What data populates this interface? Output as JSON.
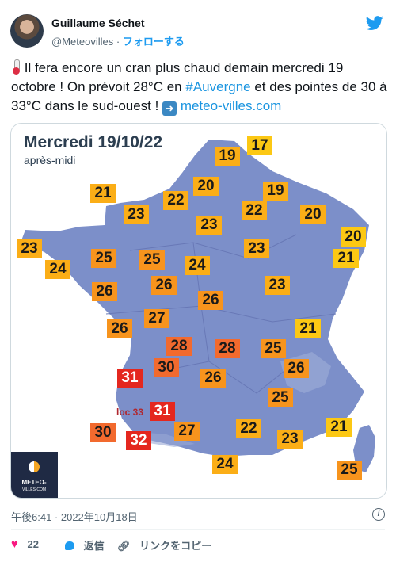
{
  "author": {
    "name": "Guillaume Séchet",
    "handle": "@Meteovilles",
    "separator": "·",
    "follow_label": "フォローする"
  },
  "tweet": {
    "text_part1": " Il fera encore un cran plus chaud demain mercredi 19 octobre ! On prévoit 28°C en ",
    "hashtag": "#Auvergne",
    "text_part2": " et des pointes de 30 à 33°C dans le sud-ouest ! ",
    "link": "meteo-villes.com"
  },
  "map": {
    "title": "Mercredi 19/10/22",
    "subtitle": "après-midi",
    "loc_label": "loc 33",
    "logo_word": "METEO-",
    "logo_domain": "VILLES.COM",
    "temps": [
      {
        "v": "17",
        "c": "yellow"
      },
      {
        "v": "19",
        "c": "orange"
      },
      {
        "v": "21",
        "c": "orange"
      },
      {
        "v": "20",
        "c": "orange"
      },
      {
        "v": "19",
        "c": "orange"
      },
      {
        "v": "22",
        "c": "orange"
      },
      {
        "v": "23",
        "c": "orange"
      },
      {
        "v": "22",
        "c": "orange"
      },
      {
        "v": "20",
        "c": "orange"
      },
      {
        "v": "23",
        "c": "orange"
      },
      {
        "v": "20",
        "c": "yellow"
      },
      {
        "v": "23",
        "c": "orange"
      },
      {
        "v": "21",
        "c": "yellow"
      },
      {
        "v": "24",
        "c": "orange"
      },
      {
        "v": "25",
        "c": "darkorange"
      },
      {
        "v": "25",
        "c": "darkorange"
      },
      {
        "v": "24",
        "c": "orange"
      },
      {
        "v": "23",
        "c": "orange"
      },
      {
        "v": "26",
        "c": "darkorange"
      },
      {
        "v": "26",
        "c": "darkorange"
      },
      {
        "v": "23",
        "c": "orange"
      },
      {
        "v": "26",
        "c": "darkorange"
      },
      {
        "v": "27",
        "c": "darkorange"
      },
      {
        "v": "26",
        "c": "darkorange"
      },
      {
        "v": "21",
        "c": "yellow"
      },
      {
        "v": "28",
        "c": "red"
      },
      {
        "v": "28",
        "c": "red"
      },
      {
        "v": "25",
        "c": "darkorange"
      },
      {
        "v": "26",
        "c": "darkorange"
      },
      {
        "v": "31",
        "c": "crimson"
      },
      {
        "v": "30",
        "c": "red"
      },
      {
        "v": "26",
        "c": "darkorange"
      },
      {
        "v": "25",
        "c": "darkorange"
      },
      {
        "v": "31",
        "c": "crimson"
      },
      {
        "v": "30",
        "c": "red"
      },
      {
        "v": "27",
        "c": "darkorange"
      },
      {
        "v": "22",
        "c": "orange"
      },
      {
        "v": "21",
        "c": "yellow"
      },
      {
        "v": "23",
        "c": "orange"
      },
      {
        "v": "32",
        "c": "crimson"
      },
      {
        "v": "24",
        "c": "orange"
      },
      {
        "v": "25",
        "c": "darkorange"
      }
    ]
  },
  "meta": {
    "timestamp": "午後6:41 · 2022年10月18日"
  },
  "actions": {
    "likes": "22",
    "reply_label": "返信",
    "copy_link_label": "リンクをコピー"
  },
  "colors": {
    "yellow": "#FCC814",
    "orange": "#FBAE17",
    "darkorange": "#F7941D",
    "red": "#F26A2E",
    "crimson": "#E4271F",
    "map": "#7C8FC9",
    "twitter_blue": "#1D9BF0"
  },
  "icons": [
    "twitter-bird-icon",
    "thermometer-emoji",
    "arrow-right-emoji",
    "info-icon",
    "heart-icon",
    "reply-icon",
    "link-icon",
    "meteovilles-logo"
  ]
}
